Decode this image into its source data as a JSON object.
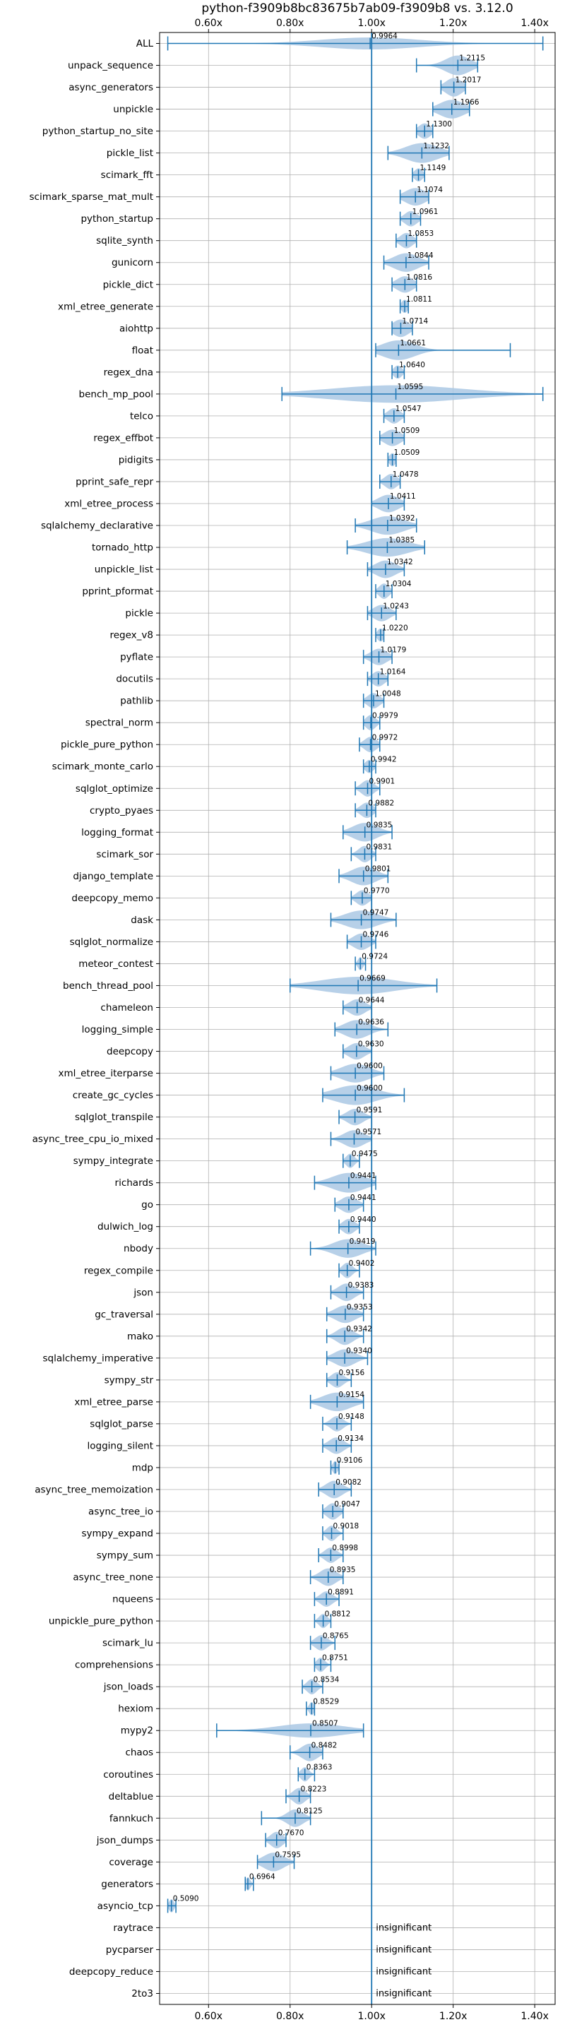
{
  "colors": {
    "series": "#1f77b4",
    "violin": "#aac8e4",
    "grid": "#b0b0b0",
    "axis": "#000000"
  },
  "chart_data": {
    "type": "violin",
    "title": "python-f3909b8bc83675b7ab09-f3909b8 vs. 3.12.0",
    "xlim": [
      0.48,
      1.45
    ],
    "xticks": [
      0.6,
      0.8,
      1.0,
      1.2,
      1.4
    ],
    "xtick_labels": [
      "0.60x",
      "0.80x",
      "1.00x",
      "1.20x",
      "1.40x"
    ],
    "grid": true,
    "reference_line": 1.0,
    "ticks_on_top_and_bottom": true,
    "insignificant_label": "insignificant",
    "benchmarks": [
      {
        "name": "ALL",
        "value": 0.9964,
        "label": "0.9964",
        "min": 0.5,
        "max": 1.42,
        "spread": 0.12,
        "width": 0.55
      },
      {
        "name": "unpack_sequence",
        "value": 1.2115,
        "label": "1.2115",
        "min": 1.11,
        "max": 1.26,
        "spread": 0.03,
        "width": 0.9
      },
      {
        "name": "async_generators",
        "value": 1.2017,
        "label": "1.2017",
        "min": 1.17,
        "max": 1.23,
        "spread": 0.02,
        "width": 0.85
      },
      {
        "name": "unpickle",
        "value": 1.1966,
        "label": "1.1966",
        "min": 1.15,
        "max": 1.24,
        "spread": 0.03,
        "width": 0.85
      },
      {
        "name": "python_startup_no_site",
        "value": 1.13,
        "label": "1.1300",
        "min": 1.11,
        "max": 1.15,
        "spread": 0.015,
        "width": 0.7
      },
      {
        "name": "pickle_list",
        "value": 1.1232,
        "label": "1.1232",
        "min": 1.04,
        "max": 1.19,
        "spread": 0.04,
        "width": 0.9
      },
      {
        "name": "scimark_fft",
        "value": 1.1149,
        "label": "1.1149",
        "min": 1.1,
        "max": 1.13,
        "spread": 0.01,
        "width": 0.6
      },
      {
        "name": "scimark_sparse_mat_mult",
        "value": 1.1074,
        "label": "1.1074",
        "min": 1.07,
        "max": 1.14,
        "spread": 0.025,
        "width": 0.8
      },
      {
        "name": "python_startup",
        "value": 1.0961,
        "label": "1.0961",
        "min": 1.07,
        "max": 1.12,
        "spread": 0.015,
        "width": 0.7
      },
      {
        "name": "sqlite_synth",
        "value": 1.0853,
        "label": "1.0853",
        "min": 1.06,
        "max": 1.11,
        "spread": 0.015,
        "width": 0.7
      },
      {
        "name": "gunicorn",
        "value": 1.0844,
        "label": "1.0844",
        "min": 1.03,
        "max": 1.14,
        "spread": 0.03,
        "width": 0.85
      },
      {
        "name": "pickle_dict",
        "value": 1.0816,
        "label": "1.0816",
        "min": 1.05,
        "max": 1.11,
        "spread": 0.02,
        "width": 0.75
      },
      {
        "name": "xml_etree_generate",
        "value": 1.0811,
        "label": "1.0811",
        "min": 1.07,
        "max": 1.09,
        "spread": 0.008,
        "width": 0.6
      },
      {
        "name": "aiohttp",
        "value": 1.0714,
        "label": "1.0714",
        "min": 1.05,
        "max": 1.1,
        "spread": 0.02,
        "width": 0.8
      },
      {
        "name": "float",
        "value": 1.0661,
        "label": "1.0661",
        "min": 1.01,
        "max": 1.34,
        "spread": 0.04,
        "width": 0.9
      },
      {
        "name": "regex_dna",
        "value": 1.064,
        "label": "1.0640",
        "min": 1.05,
        "max": 1.08,
        "spread": 0.01,
        "width": 0.6
      },
      {
        "name": "bench_mp_pool",
        "value": 1.0595,
        "label": "1.0595",
        "min": 0.78,
        "max": 1.42,
        "spread": 0.16,
        "width": 0.8
      },
      {
        "name": "telco",
        "value": 1.0547,
        "label": "1.0547",
        "min": 1.03,
        "max": 1.08,
        "spread": 0.015,
        "width": 0.7
      },
      {
        "name": "regex_effbot",
        "value": 1.0509,
        "label": "1.0509",
        "min": 1.02,
        "max": 1.08,
        "spread": 0.02,
        "width": 0.75
      },
      {
        "name": "pidigits",
        "value": 1.0509,
        "label": "1.0509",
        "min": 1.04,
        "max": 1.06,
        "spread": 0.008,
        "width": 0.6
      },
      {
        "name": "pprint_safe_repr",
        "value": 1.0478,
        "label": "1.0478",
        "min": 1.02,
        "max": 1.07,
        "spread": 0.015,
        "width": 0.7
      },
      {
        "name": "xml_etree_process",
        "value": 1.0411,
        "label": "1.0411",
        "min": 1.0,
        "max": 1.08,
        "spread": 0.025,
        "width": 0.8
      },
      {
        "name": "sqlalchemy_declarative",
        "value": 1.0392,
        "label": "1.0392",
        "min": 0.96,
        "max": 1.11,
        "spread": 0.04,
        "width": 0.85
      },
      {
        "name": "tornado_http",
        "value": 1.0385,
        "label": "1.0385",
        "min": 0.94,
        "max": 1.13,
        "spread": 0.05,
        "width": 0.85
      },
      {
        "name": "unpickle_list",
        "value": 1.0342,
        "label": "1.0342",
        "min": 0.99,
        "max": 1.08,
        "spread": 0.025,
        "width": 0.8
      },
      {
        "name": "pprint_pformat",
        "value": 1.0304,
        "label": "1.0304",
        "min": 1.01,
        "max": 1.05,
        "spread": 0.012,
        "width": 0.7
      },
      {
        "name": "pickle",
        "value": 1.0243,
        "label": "1.0243",
        "min": 0.99,
        "max": 1.06,
        "spread": 0.02,
        "width": 0.75
      },
      {
        "name": "regex_v8",
        "value": 1.022,
        "label": "1.0220",
        "min": 1.01,
        "max": 1.03,
        "spread": 0.008,
        "width": 0.6
      },
      {
        "name": "pyflate",
        "value": 1.0179,
        "label": "1.0179",
        "min": 0.98,
        "max": 1.05,
        "spread": 0.02,
        "width": 0.75
      },
      {
        "name": "docutils",
        "value": 1.0164,
        "label": "1.0164",
        "min": 0.99,
        "max": 1.04,
        "spread": 0.015,
        "width": 0.7
      },
      {
        "name": "pathlib",
        "value": 1.0048,
        "label": "1.0048",
        "min": 0.98,
        "max": 1.03,
        "spread": 0.015,
        "width": 0.7
      },
      {
        "name": "spectral_norm",
        "value": 0.9979,
        "label": "0.9979",
        "min": 0.98,
        "max": 1.02,
        "spread": 0.012,
        "width": 0.7
      },
      {
        "name": "pickle_pure_python",
        "value": 0.9972,
        "label": "0.9972",
        "min": 0.97,
        "max": 1.02,
        "spread": 0.015,
        "width": 0.7
      },
      {
        "name": "scimark_monte_carlo",
        "value": 0.9942,
        "label": "0.9942",
        "min": 0.98,
        "max": 1.01,
        "spread": 0.01,
        "width": 0.6
      },
      {
        "name": "sqlglot_optimize",
        "value": 0.9901,
        "label": "0.9901",
        "min": 0.96,
        "max": 1.02,
        "spread": 0.015,
        "width": 0.75
      },
      {
        "name": "crypto_pyaes",
        "value": 0.9882,
        "label": "0.9882",
        "min": 0.96,
        "max": 1.01,
        "spread": 0.015,
        "width": 0.7
      },
      {
        "name": "logging_format",
        "value": 0.9835,
        "label": "0.9835",
        "min": 0.93,
        "max": 1.05,
        "spread": 0.03,
        "width": 0.85
      },
      {
        "name": "scimark_sor",
        "value": 0.9831,
        "label": "0.9831",
        "min": 0.95,
        "max": 1.01,
        "spread": 0.015,
        "width": 0.75
      },
      {
        "name": "django_template",
        "value": 0.9801,
        "label": "0.9801",
        "min": 0.92,
        "max": 1.04,
        "spread": 0.03,
        "width": 0.85
      },
      {
        "name": "deepcopy_memo",
        "value": 0.977,
        "label": "0.9770",
        "min": 0.95,
        "max": 1.0,
        "spread": 0.015,
        "width": 0.7
      },
      {
        "name": "dask",
        "value": 0.9747,
        "label": "0.9747",
        "min": 0.9,
        "max": 1.06,
        "spread": 0.04,
        "width": 0.85
      },
      {
        "name": "sqlglot_normalize",
        "value": 0.9746,
        "label": "0.9746",
        "min": 0.94,
        "max": 1.01,
        "spread": 0.02,
        "width": 0.75
      },
      {
        "name": "meteor_contest",
        "value": 0.9724,
        "label": "0.9724",
        "min": 0.96,
        "max": 0.985,
        "spread": 0.006,
        "width": 0.6
      },
      {
        "name": "bench_thread_pool",
        "value": 0.9669,
        "label": "0.9669",
        "min": 0.8,
        "max": 1.16,
        "spread": 0.09,
        "width": 0.8
      },
      {
        "name": "chameleon",
        "value": 0.9644,
        "label": "0.9644",
        "min": 0.93,
        "max": 1.0,
        "spread": 0.02,
        "width": 0.75
      },
      {
        "name": "logging_simple",
        "value": 0.9636,
        "label": "0.9636",
        "min": 0.91,
        "max": 1.04,
        "spread": 0.03,
        "width": 0.85
      },
      {
        "name": "deepcopy",
        "value": 0.963,
        "label": "0.9630",
        "min": 0.93,
        "max": 1.0,
        "spread": 0.02,
        "width": 0.75
      },
      {
        "name": "xml_etree_iterparse",
        "value": 0.96,
        "label": "0.9600",
        "min": 0.9,
        "max": 1.03,
        "spread": 0.035,
        "width": 0.85
      },
      {
        "name": "create_gc_cycles",
        "value": 0.96,
        "label": "0.9600",
        "min": 0.88,
        "max": 1.08,
        "spread": 0.05,
        "width": 0.9
      },
      {
        "name": "sqlglot_transpile",
        "value": 0.9591,
        "label": "0.9591",
        "min": 0.92,
        "max": 1.0,
        "spread": 0.02,
        "width": 0.75
      },
      {
        "name": "async_tree_cpu_io_mixed",
        "value": 0.9571,
        "label": "0.9571",
        "min": 0.9,
        "max": 1.0,
        "spread": 0.025,
        "width": 0.8
      },
      {
        "name": "sympy_integrate",
        "value": 0.9475,
        "label": "0.9475",
        "min": 0.93,
        "max": 0.97,
        "spread": 0.01,
        "width": 0.65
      },
      {
        "name": "richards",
        "value": 0.9441,
        "label": "0.9441",
        "min": 0.86,
        "max": 1.01,
        "spread": 0.04,
        "width": 0.9
      },
      {
        "name": "go",
        "value": 0.9441,
        "label": "0.9441",
        "min": 0.91,
        "max": 0.98,
        "spread": 0.02,
        "width": 0.75
      },
      {
        "name": "dulwich_log",
        "value": 0.944,
        "label": "0.9440",
        "min": 0.92,
        "max": 0.97,
        "spread": 0.015,
        "width": 0.7
      },
      {
        "name": "nbody",
        "value": 0.9419,
        "label": "0.9419",
        "min": 0.85,
        "max": 1.01,
        "spread": 0.035,
        "width": 0.85
      },
      {
        "name": "regex_compile",
        "value": 0.9402,
        "label": "0.9402",
        "min": 0.92,
        "max": 0.97,
        "spread": 0.012,
        "width": 0.7
      },
      {
        "name": "json",
        "value": 0.9383,
        "label": "0.9383",
        "min": 0.9,
        "max": 0.98,
        "spread": 0.02,
        "width": 0.8
      },
      {
        "name": "gc_traversal",
        "value": 0.9353,
        "label": "0.9353",
        "min": 0.89,
        "max": 0.98,
        "spread": 0.025,
        "width": 0.8
      },
      {
        "name": "mako",
        "value": 0.9342,
        "label": "0.9342",
        "min": 0.89,
        "max": 0.98,
        "spread": 0.02,
        "width": 0.8
      },
      {
        "name": "sqlalchemy_imperative",
        "value": 0.934,
        "label": "0.9340",
        "min": 0.89,
        "max": 0.99,
        "spread": 0.025,
        "width": 0.8
      },
      {
        "name": "sympy_str",
        "value": 0.9156,
        "label": "0.9156",
        "min": 0.89,
        "max": 0.95,
        "spread": 0.015,
        "width": 0.7
      },
      {
        "name": "xml_etree_parse",
        "value": 0.9154,
        "label": "0.9154",
        "min": 0.85,
        "max": 0.98,
        "spread": 0.035,
        "width": 0.85
      },
      {
        "name": "sqlglot_parse",
        "value": 0.9148,
        "label": "0.9148",
        "min": 0.88,
        "max": 0.95,
        "spread": 0.015,
        "width": 0.7
      },
      {
        "name": "logging_silent",
        "value": 0.9134,
        "label": "0.9134",
        "min": 0.88,
        "max": 0.95,
        "spread": 0.018,
        "width": 0.75
      },
      {
        "name": "mdp",
        "value": 0.9106,
        "label": "0.9106",
        "min": 0.9,
        "max": 0.92,
        "spread": 0.006,
        "width": 0.6
      },
      {
        "name": "async_tree_memoization",
        "value": 0.9082,
        "label": "0.9082",
        "min": 0.87,
        "max": 0.95,
        "spread": 0.02,
        "width": 0.8
      },
      {
        "name": "async_tree_io",
        "value": 0.9047,
        "label": "0.9047",
        "min": 0.88,
        "max": 0.93,
        "spread": 0.015,
        "width": 0.75
      },
      {
        "name": "sympy_expand",
        "value": 0.9018,
        "label": "0.9018",
        "min": 0.88,
        "max": 0.93,
        "spread": 0.012,
        "width": 0.7
      },
      {
        "name": "sympy_sum",
        "value": 0.8998,
        "label": "0.8998",
        "min": 0.87,
        "max": 0.93,
        "spread": 0.015,
        "width": 0.7
      },
      {
        "name": "async_tree_none",
        "value": 0.8935,
        "label": "0.8935",
        "min": 0.85,
        "max": 0.93,
        "spread": 0.02,
        "width": 0.8
      },
      {
        "name": "nqueens",
        "value": 0.8891,
        "label": "0.8891",
        "min": 0.86,
        "max": 0.92,
        "spread": 0.015,
        "width": 0.7
      },
      {
        "name": "unpickle_pure_python",
        "value": 0.8812,
        "label": "0.8812",
        "min": 0.86,
        "max": 0.9,
        "spread": 0.01,
        "width": 0.65
      },
      {
        "name": "scimark_lu",
        "value": 0.8765,
        "label": "0.8765",
        "min": 0.85,
        "max": 0.91,
        "spread": 0.015,
        "width": 0.7
      },
      {
        "name": "comprehensions",
        "value": 0.8751,
        "label": "0.8751",
        "min": 0.86,
        "max": 0.9,
        "spread": 0.01,
        "width": 0.65
      },
      {
        "name": "json_loads",
        "value": 0.8534,
        "label": "0.8534",
        "min": 0.83,
        "max": 0.88,
        "spread": 0.012,
        "width": 0.7
      },
      {
        "name": "hexiom",
        "value": 0.8529,
        "label": "0.8529",
        "min": 0.84,
        "max": 0.86,
        "spread": 0.006,
        "width": 0.6
      },
      {
        "name": "mypy2",
        "value": 0.8507,
        "label": "0.8507",
        "min": 0.62,
        "max": 0.98,
        "spread": 0.08,
        "width": 0.65
      },
      {
        "name": "chaos",
        "value": 0.8482,
        "label": "0.8482",
        "min": 0.8,
        "max": 0.88,
        "spread": 0.02,
        "width": 0.8
      },
      {
        "name": "coroutines",
        "value": 0.8363,
        "label": "0.8363",
        "min": 0.82,
        "max": 0.86,
        "spread": 0.01,
        "width": 0.65
      },
      {
        "name": "deltablue",
        "value": 0.8223,
        "label": "0.8223",
        "min": 0.79,
        "max": 0.85,
        "spread": 0.015,
        "width": 0.75
      },
      {
        "name": "fannkuch",
        "value": 0.8125,
        "label": "0.8125",
        "min": 0.73,
        "max": 0.85,
        "spread": 0.02,
        "width": 0.8
      },
      {
        "name": "json_dumps",
        "value": 0.767,
        "label": "0.7670",
        "min": 0.74,
        "max": 0.79,
        "spread": 0.015,
        "width": 0.75
      },
      {
        "name": "coverage",
        "value": 0.7595,
        "label": "0.7595",
        "min": 0.72,
        "max": 0.81,
        "spread": 0.025,
        "width": 0.85
      },
      {
        "name": "generators",
        "value": 0.6964,
        "label": "0.6964",
        "min": 0.69,
        "max": 0.71,
        "spread": 0.006,
        "width": 0.6
      },
      {
        "name": "asyncio_tcp",
        "value": 0.509,
        "label": "0.5090",
        "min": 0.5,
        "max": 0.52,
        "spread": 0.006,
        "width": 0.6
      },
      {
        "name": "raytrace",
        "insignificant": true
      },
      {
        "name": "pycparser",
        "insignificant": true
      },
      {
        "name": "deepcopy_reduce",
        "insignificant": true
      },
      {
        "name": "2to3",
        "insignificant": true
      }
    ]
  }
}
